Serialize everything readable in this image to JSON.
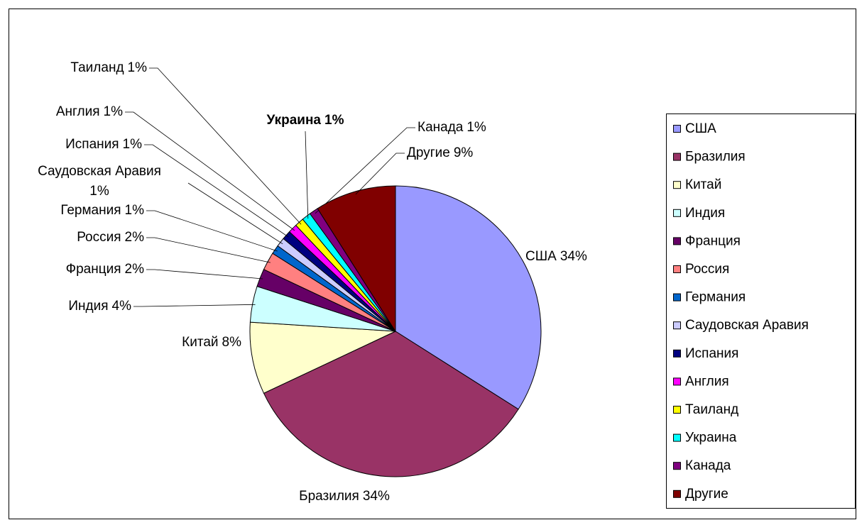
{
  "chart_data": {
    "type": "pie",
    "categories": [
      "США",
      "Бразилия",
      "Китай",
      "Индия",
      "Франция",
      "Россия",
      "Германия",
      "Саудовская Аравия",
      "Испания",
      "Англия",
      "Таиланд",
      "Украина",
      "Канада",
      "Другие"
    ],
    "values": [
      34,
      34,
      8,
      4,
      2,
      2,
      1,
      1,
      1,
      1,
      1,
      1,
      1,
      9
    ],
    "value_labels": [
      "34%",
      "34%",
      "8%",
      "4%",
      "2%",
      "2%",
      "1%",
      "1%",
      "1%",
      "1%",
      "1%",
      "1%",
      "1%",
      "9%"
    ],
    "colors": [
      "#9999ff",
      "#993366",
      "#ffffcc",
      "#ccffff",
      "#660066",
      "#ff8080",
      "#0066cc",
      "#ccccff",
      "#000080",
      "#ff00ff",
      "#ffff00",
      "#00ffff",
      "#800080",
      "#800000"
    ],
    "legend": "right"
  }
}
